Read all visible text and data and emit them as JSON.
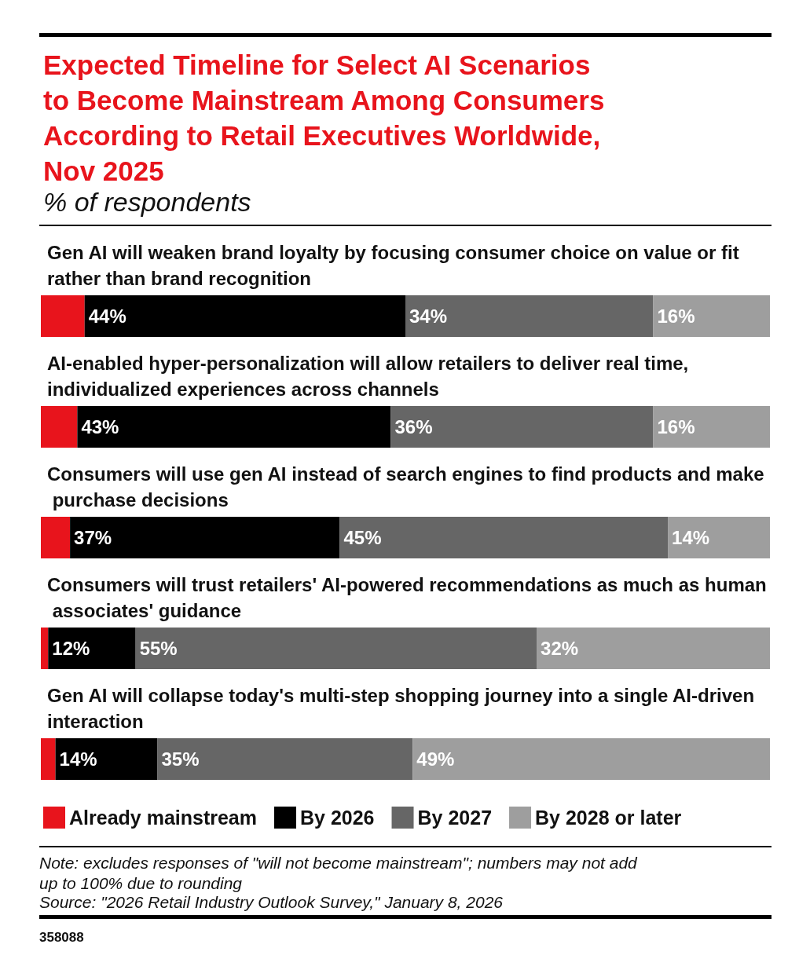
{
  "chart_data": {
    "type": "bar",
    "orientation": "horizontal",
    "stacked": true,
    "title": "Expected Timeline for Select AI Scenarios to Become Mainstream Among Consumers According to Retail Executives Worldwide, Nov 2025",
    "subtitle": "% of respondents",
    "categories": [
      "Gen AI will weaken brand loyalty by focusing consumer choice on value or fit rather than brand recognition",
      "AI-enabled hyper-personalization will allow retailers to deliver real time, individualized experiences across channels",
      "Consumers will use gen AI instead of search engines to find products and make purchase decisions",
      "Consumers will trust retailers' AI-powered recommendations as much as human associates' guidance",
      "Gen AI will collapse today's multi-step shopping journey into a single AI-driven interaction"
    ],
    "series": [
      {
        "name": "Already mainstream",
        "color": "#e8141c",
        "values": [
          6,
          5,
          4,
          1,
          2
        ],
        "value_labels": [
          null,
          null,
          null,
          null,
          null
        ]
      },
      {
        "name": "By 2026",
        "color": "#000000",
        "values": [
          44,
          43,
          37,
          12,
          14
        ],
        "value_labels": [
          "44%",
          "43%",
          "37%",
          "12%",
          "14%"
        ]
      },
      {
        "name": "By 2027",
        "color": "#666666",
        "values": [
          34,
          36,
          45,
          55,
          35
        ],
        "value_labels": [
          "34%",
          "36%",
          "45%",
          "55%",
          "35%"
        ]
      },
      {
        "name": "By 2028 or later",
        "color": "#9e9e9e",
        "values": [
          16,
          16,
          14,
          32,
          49
        ],
        "value_labels": [
          "16%",
          "16%",
          "14%",
          "32%",
          "49%"
        ]
      }
    ],
    "xlim": [
      0,
      100
    ],
    "tick_labels": "y",
    "legend": "bottom",
    "annotations": [
      "Note: excludes responses of \"will not become mainstream\"; numbers may not add up to 100% due to rounding",
      "Source: \"2026 Retail Industry Outlook Survey,\" January 8, 2026",
      "358088"
    ]
  }
}
